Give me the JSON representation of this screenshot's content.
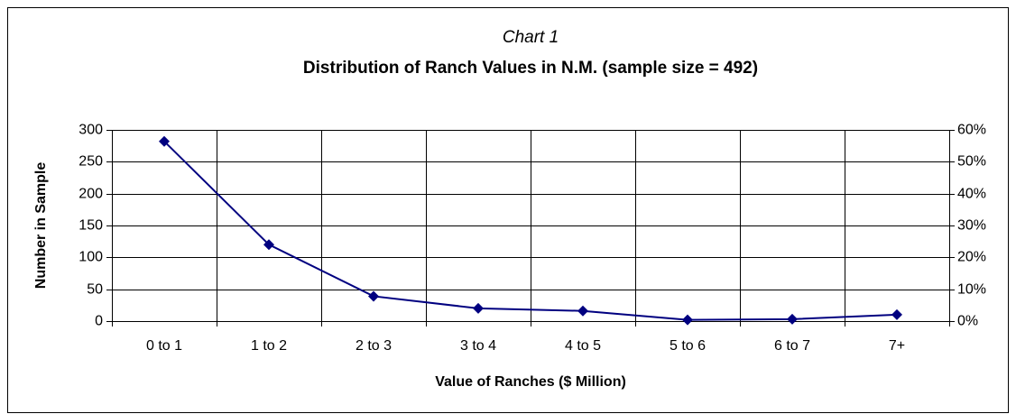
{
  "chart_data": {
    "type": "line",
    "title": "Chart 1",
    "subtitle": "Distribution of Ranch Values in N.M. (sample size = 492)",
    "x_label": "Value of Ranches ($ Million)",
    "y_label": "Number in Sample",
    "categories": [
      "0 to 1",
      "1 to 2",
      "2 to 3",
      "3 to 4",
      "4 to 5",
      "5 to 6",
      "6 to 7",
      "7+"
    ],
    "values": [
      282,
      120,
      39,
      20,
      16,
      2,
      3,
      10
    ],
    "color": "#000080",
    "ylim": [
      0,
      300
    ],
    "yticks": [
      0,
      50,
      100,
      150,
      200,
      250,
      300
    ],
    "y2lim": [
      0,
      60
    ],
    "y2ticks": [
      {
        "value": 0,
        "label": "0%"
      },
      {
        "value": 10,
        "label": "10%"
      },
      {
        "value": 20,
        "label": "20%"
      },
      {
        "value": 30,
        "label": "30%"
      },
      {
        "value": 40,
        "label": "40%"
      },
      {
        "value": 50,
        "label": "50%"
      },
      {
        "value": 60,
        "label": "60%"
      }
    ],
    "grid": true
  }
}
